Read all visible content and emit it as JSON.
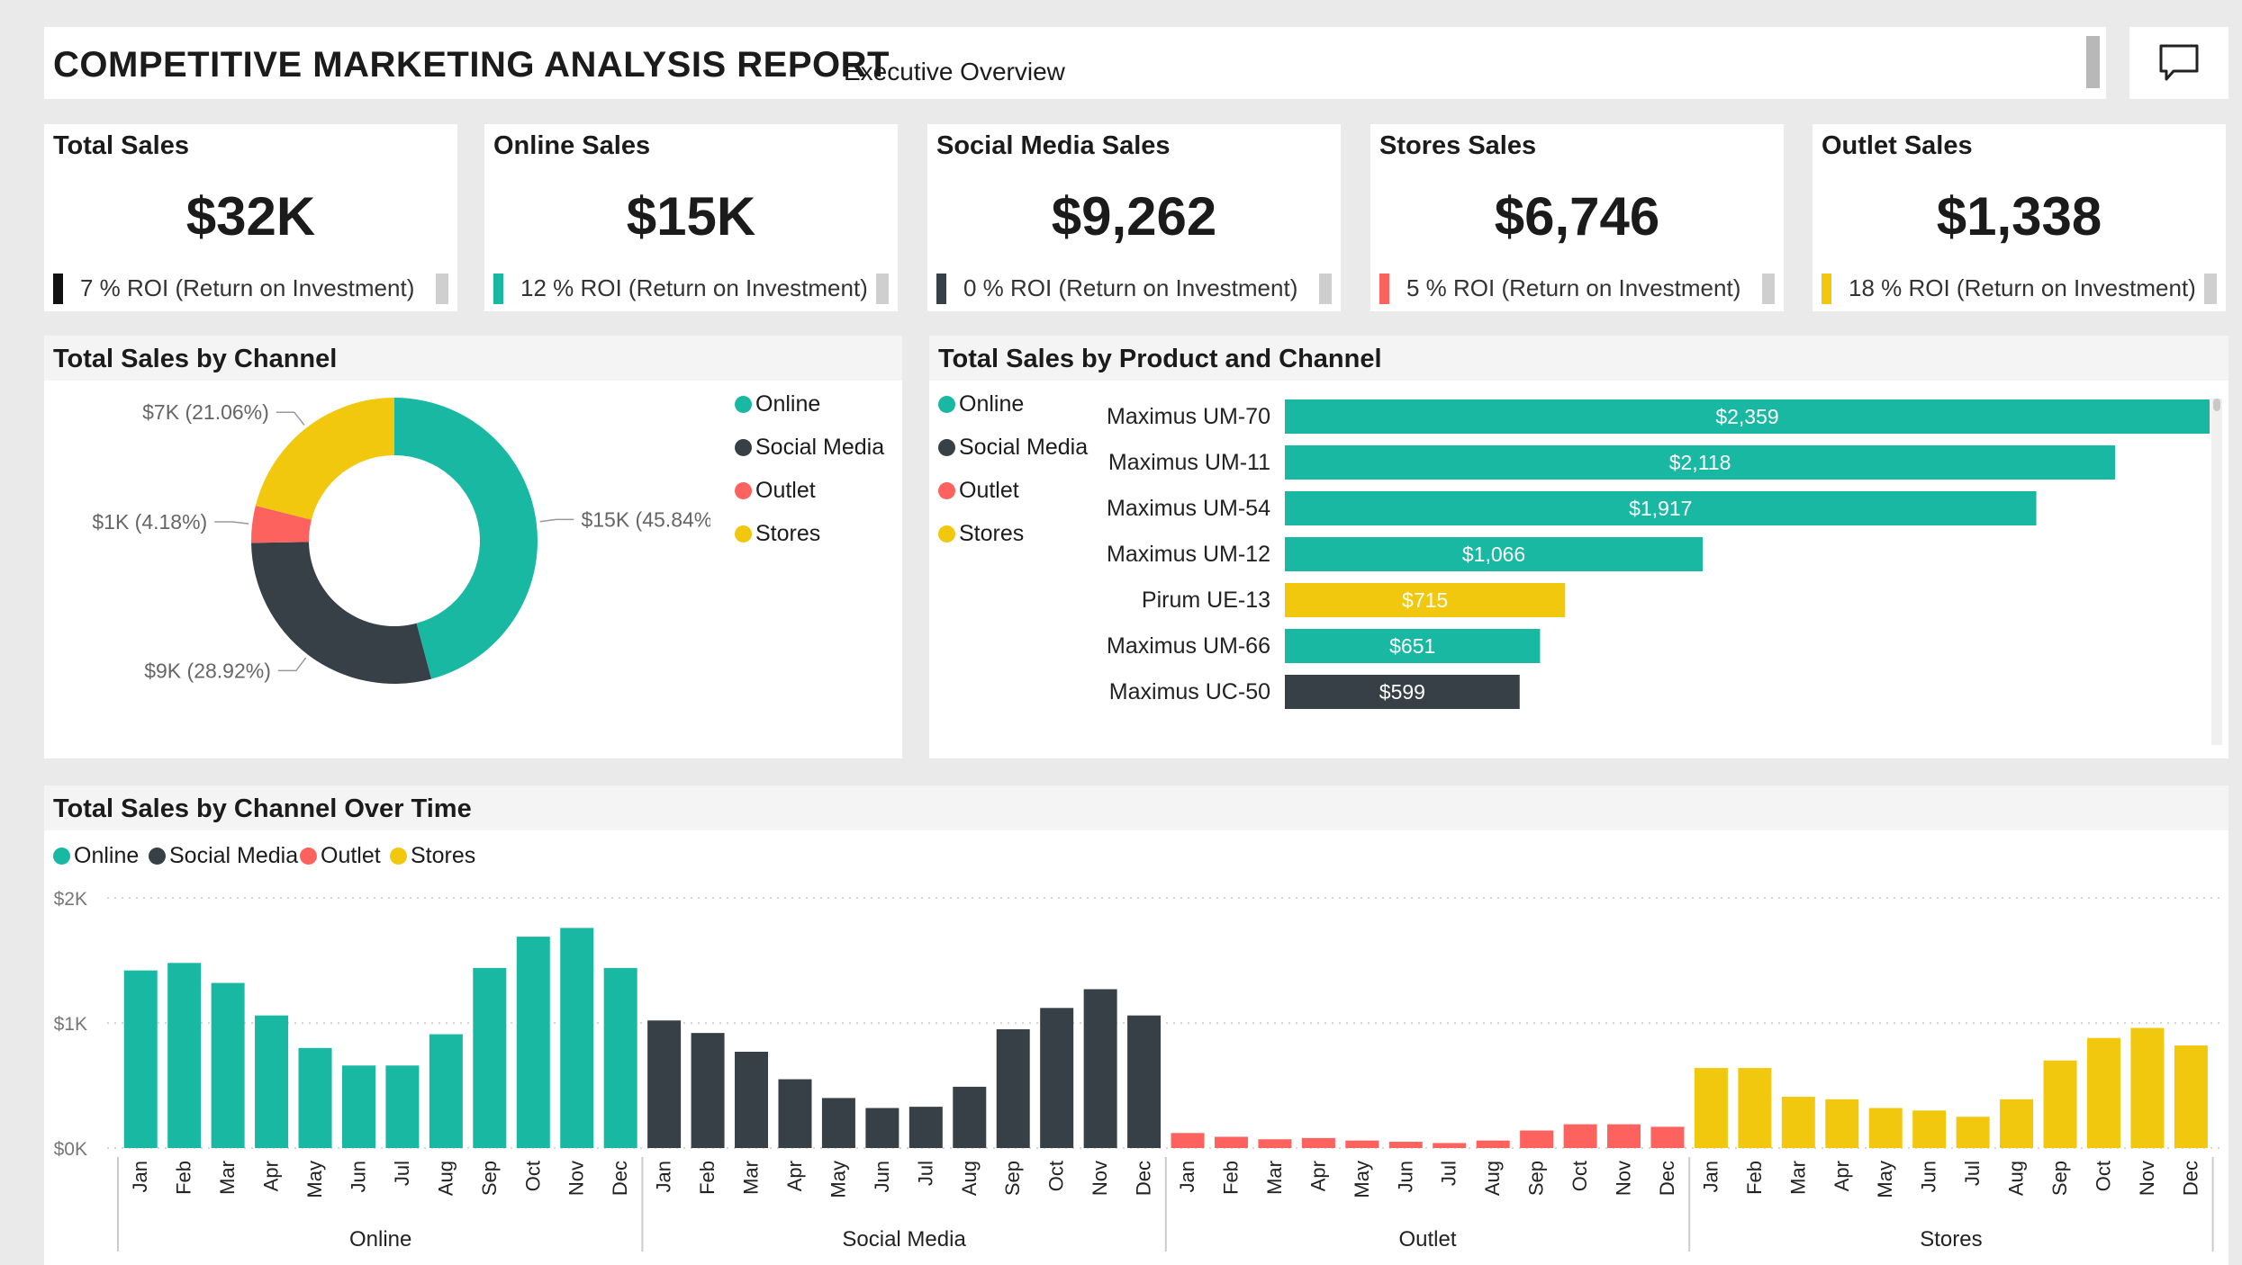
{
  "header": {
    "title": "COMPETITIVE MARKETING ANALYSIS REPORT",
    "subtitle": "Executive Overview"
  },
  "colors": {
    "online": "#19b8a3",
    "social": "#374047",
    "outlet": "#fd625e",
    "stores": "#f2c80f"
  },
  "icons": {
    "comment": "comment-icon"
  },
  "kpis": [
    {
      "label": "Total Sales",
      "value": "$32K",
      "roi": "7 % ROI (Return on Investment)",
      "color": "#111111"
    },
    {
      "label": "Online Sales",
      "value": "$15K",
      "roi": "12 % ROI (Return on Investment)",
      "color": "#19b8a3"
    },
    {
      "label": "Social Media Sales",
      "value": "$9,262",
      "roi": "0 % ROI (Return on Investment)",
      "color": "#374047"
    },
    {
      "label": "Stores Sales",
      "value": "$6,746",
      "roi": "5 % ROI (Return on Investment)",
      "color": "#fd625e"
    },
    {
      "label": "Outlet Sales",
      "value": "$1,338",
      "roi": "18 % ROI (Return on Investment)",
      "color": "#f2c80f"
    }
  ],
  "donut": {
    "title": "Total Sales by Channel",
    "legend": [
      "Online",
      "Social Media",
      "Outlet",
      "Stores"
    ]
  },
  "products": {
    "title": "Total Sales by Product and Channel",
    "legend": [
      "Online",
      "Social Media",
      "Outlet",
      "Stores"
    ]
  },
  "overtime": {
    "title": "Total Sales by Channel Over Time",
    "legend": [
      "Online",
      "Social Media",
      "Outlet",
      "Stores"
    ]
  },
  "chart_data": [
    {
      "type": "pie",
      "title": "Total Sales by Channel",
      "slices": [
        {
          "name": "Online",
          "value": 45.84,
          "label": "$15K (45.84%)",
          "color": "#19b8a3"
        },
        {
          "name": "Social Media",
          "value": 28.92,
          "label": "$9K (28.92%)",
          "color": "#374047"
        },
        {
          "name": "Outlet",
          "value": 4.18,
          "label": "$1K (4.18%)",
          "color": "#fd625e"
        },
        {
          "name": "Stores",
          "value": 21.06,
          "label": "$7K (21.06%)",
          "color": "#f2c80f"
        }
      ]
    },
    {
      "type": "bar",
      "orientation": "horizontal",
      "title": "Total Sales by Product and Channel",
      "categories": [
        "Maximus UM-70",
        "Maximus UM-11",
        "Maximus UM-54",
        "Maximus UM-12",
        "Pirum UE-13",
        "Maximus UM-66",
        "Maximus UC-50"
      ],
      "values": [
        2359,
        2118,
        1917,
        1066,
        715,
        651,
        599
      ],
      "labels": [
        "$2,359",
        "$2,118",
        "$1,917",
        "$1,066",
        "$715",
        "$651",
        "$599"
      ],
      "colors": [
        "#19b8a3",
        "#19b8a3",
        "#19b8a3",
        "#19b8a3",
        "#f2c80f",
        "#19b8a3",
        "#374047"
      ],
      "xlim": [
        0,
        2400
      ]
    },
    {
      "type": "bar",
      "title": "Total Sales by Channel Over Time",
      "months": [
        "Jan",
        "Feb",
        "Mar",
        "Apr",
        "May",
        "Jun",
        "Jul",
        "Aug",
        "Sep",
        "Oct",
        "Nov",
        "Dec"
      ],
      "yticks": [
        "$0K",
        "$1K",
        "$2K"
      ],
      "ylim": [
        0,
        2000
      ],
      "grid": true,
      "legend_position": "top-left",
      "series": [
        {
          "name": "Online",
          "color": "#19b8a3",
          "values": [
            1420,
            1480,
            1320,
            1060,
            800,
            660,
            660,
            910,
            1440,
            1690,
            1760,
            1440
          ]
        },
        {
          "name": "Social Media",
          "color": "#374047",
          "values": [
            1020,
            920,
            770,
            550,
            400,
            320,
            330,
            490,
            950,
            1120,
            1270,
            1060
          ]
        },
        {
          "name": "Outlet",
          "color": "#fd625e",
          "values": [
            120,
            90,
            70,
            80,
            60,
            50,
            40,
            60,
            140,
            190,
            190,
            170
          ]
        },
        {
          "name": "Stores",
          "color": "#f2c80f",
          "values": [
            640,
            640,
            410,
            390,
            320,
            300,
            250,
            390,
            700,
            880,
            960,
            820
          ]
        }
      ]
    }
  ]
}
